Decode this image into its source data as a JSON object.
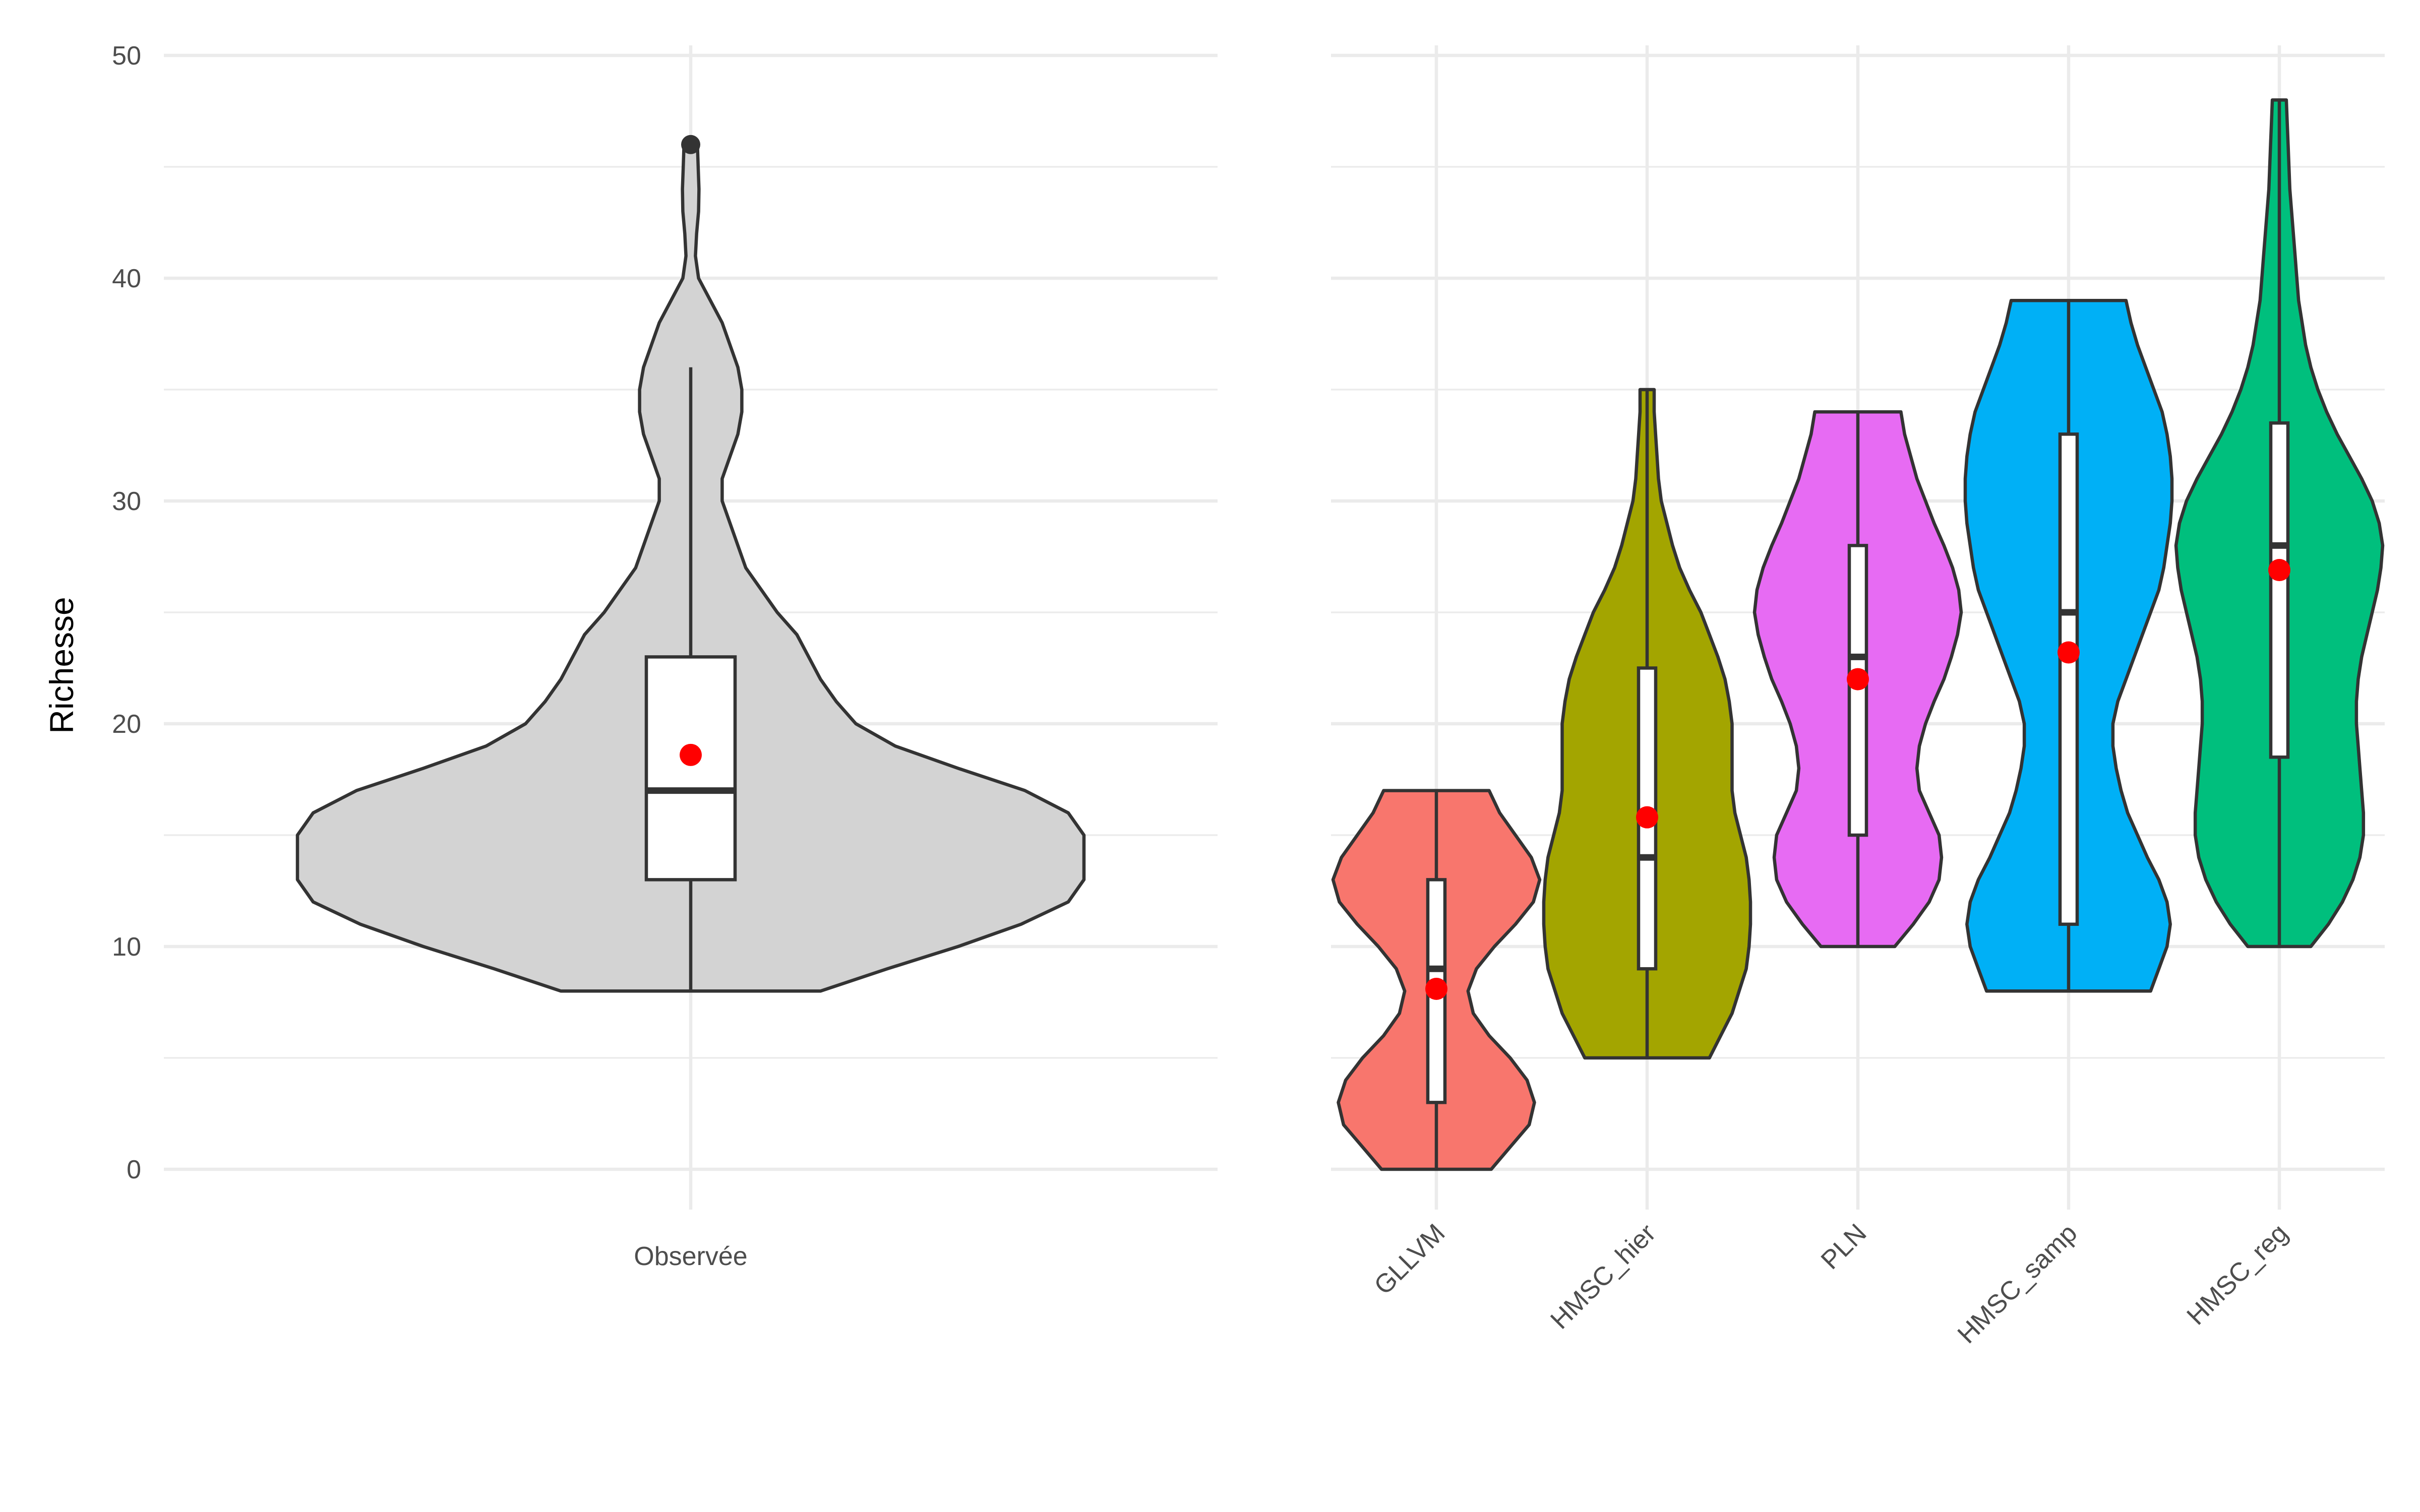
{
  "chart_data": [
    {
      "type": "violin",
      "ylabel": "Richesse",
      "ylim": [
        0,
        50
      ],
      "yticks": [
        0,
        10,
        20,
        30,
        40,
        50
      ],
      "categories": [
        "Observée"
      ],
      "fill": [
        "#d3d3d3"
      ],
      "violins": [
        {
          "name": "Observée",
          "ymin": 8,
          "ymax": 46,
          "density": [
            [
              8,
              0.33
            ],
            [
              9,
              0.5
            ],
            [
              10,
              0.68
            ],
            [
              11,
              0.84
            ],
            [
              12,
              0.96
            ],
            [
              13,
              1.0
            ],
            [
              14,
              1.0
            ],
            [
              15,
              1.0
            ],
            [
              16,
              0.96
            ],
            [
              17,
              0.85
            ],
            [
              18,
              0.68
            ],
            [
              19,
              0.52
            ],
            [
              20,
              0.42
            ],
            [
              21,
              0.37
            ],
            [
              22,
              0.33
            ],
            [
              23,
              0.3
            ],
            [
              24,
              0.27
            ],
            [
              25,
              0.22
            ],
            [
              26,
              0.18
            ],
            [
              27,
              0.14
            ],
            [
              28,
              0.12
            ],
            [
              29,
              0.1
            ],
            [
              30,
              0.08
            ],
            [
              31,
              0.08
            ],
            [
              32,
              0.1
            ],
            [
              33,
              0.12
            ],
            [
              34,
              0.13
            ],
            [
              35,
              0.13
            ],
            [
              36,
              0.12
            ],
            [
              37,
              0.1
            ],
            [
              38,
              0.08
            ],
            [
              39,
              0.05
            ],
            [
              40,
              0.02
            ],
            [
              41,
              0.012
            ],
            [
              42,
              0.015
            ],
            [
              43,
              0.02
            ],
            [
              44,
              0.021
            ],
            [
              45,
              0.019
            ],
            [
              46,
              0.017
            ]
          ],
          "box": {
            "q1": 13,
            "median": 17,
            "q3": 23,
            "lower": 8,
            "upper": 36
          },
          "mean": 18.6,
          "outliers": [
            46
          ]
        }
      ]
    },
    {
      "type": "violin",
      "ylim": [
        0,
        50
      ],
      "categories": [
        "GLLVM",
        "HMSC_hier",
        "PLN",
        "HMSC_samp",
        "HMSC_reg"
      ],
      "fill": [
        "#f8766d",
        "#a3a500",
        "#e76bf3",
        "#00b0f6",
        "#00bf7d"
      ],
      "violins": [
        {
          "name": "GLLVM",
          "ymin": 0,
          "ymax": 17,
          "density": [
            [
              0,
              0.52
            ],
            [
              1,
              0.7
            ],
            [
              2,
              0.88
            ],
            [
              3,
              0.93
            ],
            [
              4,
              0.86
            ],
            [
              5,
              0.7
            ],
            [
              6,
              0.5
            ],
            [
              7,
              0.35
            ],
            [
              8,
              0.3
            ],
            [
              9,
              0.38
            ],
            [
              10,
              0.55
            ],
            [
              11,
              0.75
            ],
            [
              12,
              0.92
            ],
            [
              13,
              0.98
            ],
            [
              14,
              0.9
            ],
            [
              15,
              0.75
            ],
            [
              16,
              0.6
            ],
            [
              17,
              0.5
            ]
          ],
          "box": {
            "q1": 3,
            "median": 9,
            "q3": 13,
            "lower": 0,
            "upper": 17
          },
          "mean": 8.1
        },
        {
          "name": "HMSC_hier",
          "ymin": 5,
          "ymax": 35,
          "density": [
            [
              5,
              0.44
            ],
            [
              6,
              0.52
            ],
            [
              7,
              0.6
            ],
            [
              8,
              0.65
            ],
            [
              9,
              0.7
            ],
            [
              10,
              0.72
            ],
            [
              11,
              0.73
            ],
            [
              12,
              0.73
            ],
            [
              13,
              0.72
            ],
            [
              14,
              0.7
            ],
            [
              15,
              0.66
            ],
            [
              16,
              0.62
            ],
            [
              17,
              0.6
            ],
            [
              18,
              0.6
            ],
            [
              19,
              0.6
            ],
            [
              20,
              0.6
            ],
            [
              21,
              0.58
            ],
            [
              22,
              0.55
            ],
            [
              23,
              0.5
            ],
            [
              24,
              0.44
            ],
            [
              25,
              0.38
            ],
            [
              26,
              0.3
            ],
            [
              27,
              0.23
            ],
            [
              28,
              0.18
            ],
            [
              29,
              0.14
            ],
            [
              30,
              0.1
            ],
            [
              31,
              0.08
            ],
            [
              32,
              0.07
            ],
            [
              33,
              0.06
            ],
            [
              34,
              0.05
            ],
            [
              35,
              0.05
            ]
          ],
          "box": {
            "q1": 9,
            "median": 14,
            "q3": 22.5,
            "lower": 5,
            "upper": 35
          },
          "mean": 15.8
        },
        {
          "name": "PLN",
          "ymin": 10,
          "ymax": 34,
          "density": [
            [
              10,
              0.3
            ],
            [
              11,
              0.45
            ],
            [
              12,
              0.58
            ],
            [
              13,
              0.66
            ],
            [
              14,
              0.68
            ],
            [
              15,
              0.66
            ],
            [
              16,
              0.58
            ],
            [
              17,
              0.5
            ],
            [
              18,
              0.48
            ],
            [
              19,
              0.5
            ],
            [
              20,
              0.55
            ],
            [
              21,
              0.62
            ],
            [
              22,
              0.7
            ],
            [
              23,
              0.76
            ],
            [
              24,
              0.81
            ],
            [
              25,
              0.84
            ],
            [
              26,
              0.82
            ],
            [
              27,
              0.77
            ],
            [
              28,
              0.7
            ],
            [
              29,
              0.62
            ],
            [
              30,
              0.55
            ],
            [
              31,
              0.48
            ],
            [
              32,
              0.43
            ],
            [
              33,
              0.38
            ],
            [
              34,
              0.35
            ]
          ],
          "box": {
            "q1": 15,
            "median": 23,
            "q3": 28,
            "lower": 10,
            "upper": 34
          },
          "mean": 22
        },
        {
          "name": "HMSC_samp",
          "ymin": 8,
          "ymax": 39,
          "density": [
            [
              8,
              0.5
            ],
            [
              9,
              0.55
            ],
            [
              10,
              0.6
            ],
            [
              11,
              0.62
            ],
            [
              12,
              0.6
            ],
            [
              13,
              0.55
            ],
            [
              14,
              0.48
            ],
            [
              15,
              0.42
            ],
            [
              16,
              0.36
            ],
            [
              17,
              0.32
            ],
            [
              18,
              0.29
            ],
            [
              19,
              0.27
            ],
            [
              20,
              0.27
            ],
            [
              21,
              0.3
            ],
            [
              22,
              0.35
            ],
            [
              23,
              0.4
            ],
            [
              24,
              0.45
            ],
            [
              25,
              0.5
            ],
            [
              26,
              0.55
            ],
            [
              27,
              0.58
            ],
            [
              28,
              0.6
            ],
            [
              29,
              0.62
            ],
            [
              30,
              0.63
            ],
            [
              31,
              0.63
            ],
            [
              32,
              0.62
            ],
            [
              33,
              0.6
            ],
            [
              34,
              0.57
            ],
            [
              35,
              0.52
            ],
            [
              36,
              0.47
            ],
            [
              37,
              0.42
            ],
            [
              38,
              0.38
            ],
            [
              39,
              0.35
            ]
          ],
          "box": {
            "q1": 11,
            "median": 25,
            "q3": 33,
            "lower": 8,
            "upper": 39
          },
          "mean": 23.2
        },
        {
          "name": "HMSC_reg",
          "ymin": 10,
          "ymax": 48,
          "density": [
            [
              10,
              0.18
            ],
            [
              11,
              0.28
            ],
            [
              12,
              0.36
            ],
            [
              13,
              0.42
            ],
            [
              14,
              0.46
            ],
            [
              15,
              0.48
            ],
            [
              16,
              0.48
            ],
            [
              17,
              0.47
            ],
            [
              18,
              0.46
            ],
            [
              19,
              0.45
            ],
            [
              20,
              0.44
            ],
            [
              21,
              0.44
            ],
            [
              22,
              0.45
            ],
            [
              23,
              0.47
            ],
            [
              24,
              0.5
            ],
            [
              25,
              0.53
            ],
            [
              26,
              0.56
            ],
            [
              27,
              0.58
            ],
            [
              28,
              0.59
            ],
            [
              29,
              0.57
            ],
            [
              30,
              0.53
            ],
            [
              31,
              0.47
            ],
            [
              32,
              0.4
            ],
            [
              33,
              0.33
            ],
            [
              34,
              0.27
            ],
            [
              35,
              0.22
            ],
            [
              36,
              0.18
            ],
            [
              37,
              0.15
            ],
            [
              38,
              0.13
            ],
            [
              39,
              0.11
            ],
            [
              40,
              0.1
            ],
            [
              41,
              0.09
            ],
            [
              42,
              0.08
            ],
            [
              43,
              0.07
            ],
            [
              44,
              0.06
            ],
            [
              45,
              0.055
            ],
            [
              46,
              0.05
            ],
            [
              47,
              0.045
            ],
            [
              48,
              0.04
            ]
          ],
          "box": {
            "q1": 18.5,
            "median": 28,
            "q3": 33.5,
            "lower": 10,
            "upper": 48
          },
          "mean": 26.9
        }
      ]
    }
  ]
}
